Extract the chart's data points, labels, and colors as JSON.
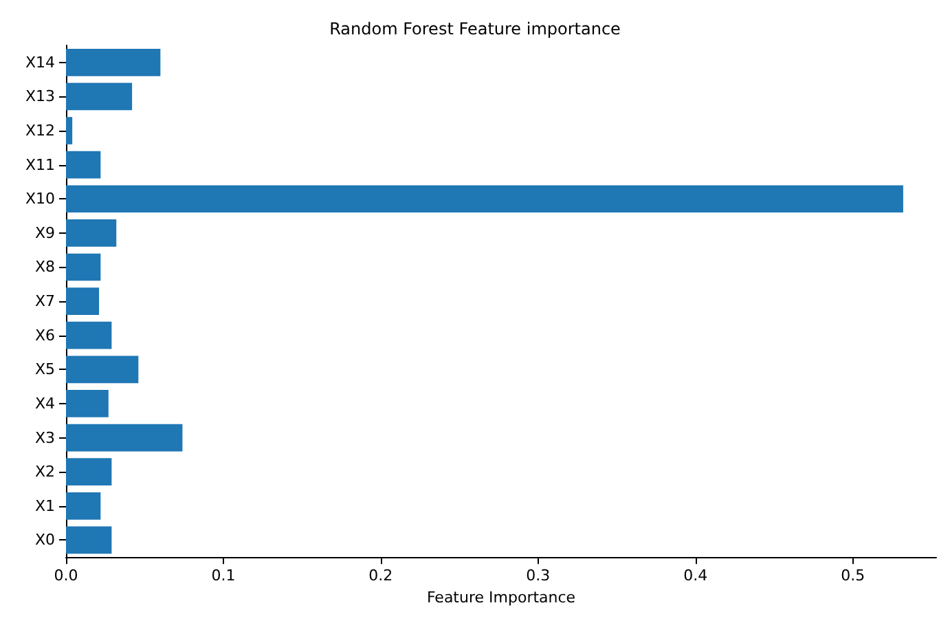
{
  "chart_data": {
    "type": "bar",
    "orientation": "horizontal",
    "title": "Random Forest Feature importance",
    "xlabel": "Feature Importance",
    "categories": [
      "X14",
      "X13",
      "X12",
      "X11",
      "X10",
      "X9",
      "X8",
      "X7",
      "X6",
      "X5",
      "X4",
      "X3",
      "X2",
      "X1",
      "X0"
    ],
    "values": [
      0.06,
      0.042,
      0.004,
      0.022,
      0.532,
      0.032,
      0.022,
      0.021,
      0.029,
      0.046,
      0.027,
      0.074,
      0.029,
      0.022,
      0.029
    ],
    "color": "#1f77b4",
    "xlim": [
      0,
      0.553
    ],
    "xticks": [
      {
        "value": 0,
        "label": "0.0"
      },
      0.1,
      0.2,
      0.3,
      0.4,
      0.5
    ],
    "grid": false
  }
}
